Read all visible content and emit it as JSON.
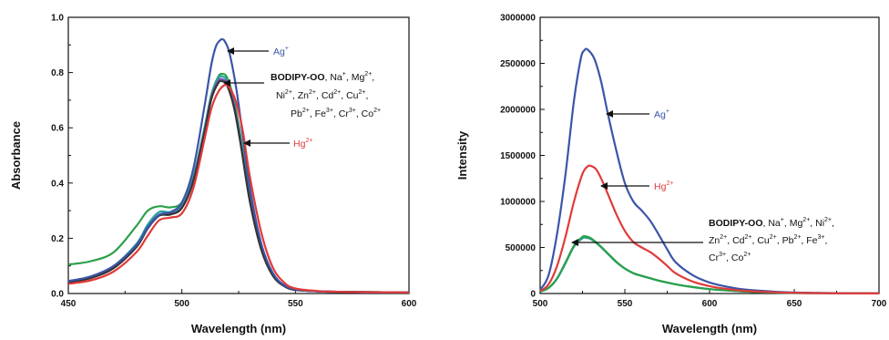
{
  "chart_data": [
    {
      "type": "line",
      "xlabel": "Wavelength (nm)",
      "ylabel": "Absorbance",
      "xlim": [
        450,
        600
      ],
      "ylim": [
        0,
        1.0
      ],
      "xticks": [
        "450",
        "500",
        "550",
        "600"
      ],
      "yticks": [
        "0.0",
        "0.2",
        "0.4",
        "0.6",
        "0.8",
        "1.0"
      ],
      "grid": false,
      "series": [
        {
          "color": "#2ba049",
          "x": [
            450,
            460,
            470,
            480,
            485,
            490,
            495,
            500,
            505,
            510,
            513,
            516,
            518,
            520,
            523,
            526,
            530,
            535,
            540,
            545,
            550,
            560,
            570,
            580,
            600
          ],
          "y": [
            0.105,
            0.117,
            0.15,
            0.245,
            0.3,
            0.316,
            0.312,
            0.33,
            0.42,
            0.6,
            0.72,
            0.785,
            0.795,
            0.78,
            0.7,
            0.56,
            0.35,
            0.17,
            0.07,
            0.03,
            0.015,
            0.008,
            0.006,
            0.005,
            0.004
          ]
        },
        {
          "color": "#2aa0a0",
          "x": [
            450,
            460,
            470,
            480,
            485,
            490,
            495,
            500,
            505,
            510,
            513,
            516,
            518,
            520,
            523,
            526,
            530,
            535,
            540,
            545,
            550,
            560,
            570,
            580,
            600
          ],
          "y": [
            0.045,
            0.06,
            0.1,
            0.18,
            0.25,
            0.295,
            0.295,
            0.32,
            0.42,
            0.6,
            0.72,
            0.78,
            0.785,
            0.77,
            0.69,
            0.55,
            0.34,
            0.165,
            0.068,
            0.028,
            0.014,
            0.008,
            0.006,
            0.005,
            0.004
          ]
        },
        {
          "color": "#7a4fb0",
          "x": [
            450,
            460,
            470,
            480,
            485,
            490,
            495,
            500,
            505,
            510,
            513,
            516,
            518,
            520,
            523,
            526,
            530,
            535,
            540,
            545,
            550,
            560,
            570,
            580,
            600
          ],
          "y": [
            0.042,
            0.058,
            0.095,
            0.172,
            0.24,
            0.285,
            0.288,
            0.312,
            0.41,
            0.59,
            0.71,
            0.77,
            0.775,
            0.76,
            0.68,
            0.54,
            0.335,
            0.16,
            0.066,
            0.027,
            0.013,
            0.008,
            0.006,
            0.005,
            0.004
          ]
        },
        {
          "color": "#333333",
          "x": [
            450,
            460,
            470,
            480,
            485,
            490,
            495,
            500,
            505,
            510,
            513,
            516,
            518,
            520,
            523,
            526,
            530,
            535,
            540,
            545,
            550,
            560,
            570,
            580,
            600
          ],
          "y": [
            0.04,
            0.056,
            0.092,
            0.168,
            0.236,
            0.282,
            0.286,
            0.31,
            0.405,
            0.585,
            0.705,
            0.762,
            0.768,
            0.752,
            0.672,
            0.535,
            0.33,
            0.158,
            0.065,
            0.027,
            0.013,
            0.008,
            0.006,
            0.005,
            0.004
          ]
        },
        {
          "color": "#3b55a8",
          "x": [
            450,
            460,
            470,
            480,
            485,
            490,
            495,
            500,
            505,
            510,
            513,
            515,
            517,
            518,
            519,
            521,
            524,
            527,
            530,
            535,
            540,
            545,
            550,
            560,
            570,
            580,
            600
          ],
          "y": [
            0.045,
            0.062,
            0.1,
            0.175,
            0.24,
            0.285,
            0.295,
            0.33,
            0.45,
            0.68,
            0.83,
            0.895,
            0.918,
            0.92,
            0.912,
            0.87,
            0.74,
            0.56,
            0.38,
            0.18,
            0.075,
            0.03,
            0.015,
            0.008,
            0.006,
            0.005,
            0.004
          ]
        },
        {
          "color": "#e03a3a",
          "x": [
            450,
            460,
            470,
            480,
            485,
            490,
            495,
            500,
            505,
            510,
            513,
            516,
            519,
            521,
            524,
            527,
            530,
            535,
            540,
            545,
            550,
            560,
            570,
            580,
            600
          ],
          "y": [
            0.035,
            0.048,
            0.08,
            0.15,
            0.21,
            0.265,
            0.275,
            0.29,
            0.38,
            0.56,
            0.67,
            0.73,
            0.755,
            0.745,
            0.69,
            0.58,
            0.42,
            0.22,
            0.095,
            0.04,
            0.018,
            0.009,
            0.006,
            0.005,
            0.004
          ]
        }
      ],
      "annotations": [
        {
          "label": "Ag",
          "sup": "+",
          "color": "#3b55a8"
        },
        {
          "label": "Hg",
          "sup": "2+",
          "color": "#e03a3a"
        }
      ],
      "annotation_block": {
        "lines": [
          [
            {
              "t": "BODIPY-OO",
              "b": true
            },
            {
              "t": ", Na"
            },
            {
              "t": "+",
              "sup": true
            },
            {
              "t": ", Mg"
            },
            {
              "t": "2+",
              "sup": true
            },
            {
              "t": ","
            }
          ],
          [
            {
              "t": "Ni"
            },
            {
              "t": "2+",
              "sup": true
            },
            {
              "t": ", Zn"
            },
            {
              "t": "2+",
              "sup": true
            },
            {
              "t": ", Cd"
            },
            {
              "t": "2+",
              "sup": true
            },
            {
              "t": ", Cu"
            },
            {
              "t": "2+",
              "sup": true
            },
            {
              "t": ","
            }
          ],
          [
            {
              "t": "Pb"
            },
            {
              "t": "2+",
              "sup": true
            },
            {
              "t": ", Fe"
            },
            {
              "t": "3+",
              "sup": true
            },
            {
              "t": ", Cr"
            },
            {
              "t": "3+",
              "sup": true
            },
            {
              "t": ", Co"
            },
            {
              "t": "2+",
              "sup": true
            }
          ]
        ]
      }
    },
    {
      "type": "line",
      "xlabel": "Wavelength (nm)",
      "ylabel": "Intensity",
      "xlim": [
        500,
        700
      ],
      "ylim": [
        0,
        3000000
      ],
      "xticks": [
        "500",
        "550",
        "600",
        "650",
        "700"
      ],
      "yticks": [
        "0",
        "500000",
        "1000000",
        "1500000",
        "2000000",
        "2500000",
        "3000000"
      ],
      "grid": false,
      "series": [
        {
          "color": "#2aa0a0",
          "x": [
            500,
            505,
            510,
            515,
            520,
            525,
            527,
            530,
            535,
            540,
            545,
            550,
            555,
            560,
            565,
            570,
            580,
            590,
            600,
            620,
            640,
            660,
            700
          ],
          "y": [
            20000,
            60000,
            160000,
            330000,
            510000,
            600000,
            605000,
            590000,
            520000,
            430000,
            340000,
            270000,
            220000,
            190000,
            165000,
            140000,
            100000,
            70000,
            48000,
            22000,
            10000,
            5000,
            2000
          ]
        },
        {
          "color": "#2ba049",
          "x": [
            500,
            505,
            510,
            515,
            520,
            525,
            527,
            530,
            535,
            540,
            545,
            550,
            555,
            560,
            565,
            570,
            580,
            590,
            600,
            620,
            640,
            660,
            700
          ],
          "y": [
            22000,
            62000,
            165000,
            340000,
            520000,
            615000,
            620000,
            600000,
            525000,
            435000,
            345000,
            272000,
            222000,
            192000,
            166000,
            141000,
            100000,
            70000,
            48000,
            22000,
            10000,
            5000,
            2000
          ]
        },
        {
          "color": "#3b55a8",
          "x": [
            500,
            505,
            510,
            515,
            520,
            524,
            526,
            528,
            532,
            536,
            540,
            545,
            550,
            555,
            560,
            565,
            570,
            575,
            580,
            590,
            600,
            610,
            620,
            640,
            660,
            680,
            700
          ],
          "y": [
            40000,
            200000,
            650000,
            1300000,
            2100000,
            2550000,
            2640000,
            2650000,
            2550000,
            2300000,
            1950000,
            1550000,
            1200000,
            1000000,
            900000,
            790000,
            640000,
            480000,
            340000,
            200000,
            120000,
            75000,
            45000,
            18000,
            7000,
            3000,
            1000
          ]
        },
        {
          "color": "#e03a3a",
          "x": [
            500,
            505,
            510,
            515,
            520,
            525,
            528,
            530,
            533,
            536,
            540,
            545,
            550,
            555,
            560,
            565,
            570,
            575,
            580,
            590,
            600,
            610,
            620,
            640,
            660,
            680,
            700
          ],
          "y": [
            25000,
            100000,
            300000,
            620000,
            1000000,
            1300000,
            1380000,
            1385000,
            1350000,
            1250000,
            1080000,
            860000,
            680000,
            560000,
            500000,
            450000,
            380000,
            300000,
            220000,
            130000,
            80000,
            50000,
            30000,
            12000,
            5000,
            2000,
            1000
          ]
        }
      ],
      "annotations": [
        {
          "label": "Ag",
          "sup": "+",
          "color": "#3b55a8"
        },
        {
          "label": "Hg",
          "sup": "2+",
          "color": "#e03a3a"
        }
      ],
      "annotation_block": {
        "lines": [
          [
            {
              "t": "BODIPY-OO",
              "b": true
            },
            {
              "t": ", Na"
            },
            {
              "t": "+",
              "sup": true
            },
            {
              "t": ", Mg"
            },
            {
              "t": "2+",
              "sup": true
            },
            {
              "t": ", Ni"
            },
            {
              "t": "2+",
              "sup": true
            },
            {
              "t": ","
            }
          ],
          [
            {
              "t": "Zn"
            },
            {
              "t": "2+",
              "sup": true
            },
            {
              "t": ", Cd"
            },
            {
              "t": "2+",
              "sup": true
            },
            {
              "t": ", Cu"
            },
            {
              "t": "2+",
              "sup": true
            },
            {
              "t": ", Pb"
            },
            {
              "t": "2+",
              "sup": true
            },
            {
              "t": ", Fe"
            },
            {
              "t": "3+",
              "sup": true
            },
            {
              "t": ","
            }
          ],
          [
            {
              "t": "Cr"
            },
            {
              "t": "3+",
              "sup": true
            },
            {
              "t": ", Co"
            },
            {
              "t": "2+",
              "sup": true
            }
          ]
        ]
      }
    }
  ]
}
